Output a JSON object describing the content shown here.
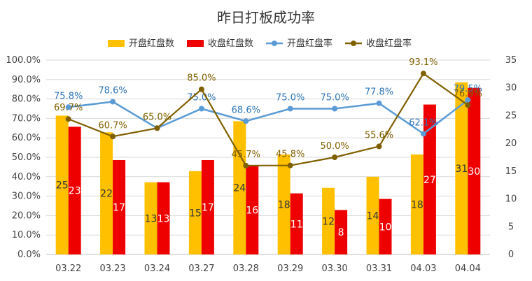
{
  "chart_data": {
    "type": "bar",
    "title": "昨日打板成功率",
    "categories": [
      "03.22",
      "03.23",
      "03.24",
      "03.27",
      "03.28",
      "03.29",
      "03.30",
      "03.31",
      "04.03",
      "04.04"
    ],
    "series": [
      {
        "name": "开盘红盘数",
        "kind": "bar",
        "axis": "right",
        "color": "#FFC000",
        "values": [
          25,
          22,
          13,
          15,
          24,
          18,
          12,
          14,
          18,
          31
        ]
      },
      {
        "name": "收盘红盘数",
        "kind": "bar",
        "axis": "right",
        "color": "#EE0000",
        "values": [
          23,
          17,
          13,
          17,
          16,
          11,
          8,
          10,
          27,
          30
        ]
      },
      {
        "name": "开盘红盘率",
        "kind": "line",
        "axis": "left",
        "color": "#5B9BD5",
        "label_color": "#2E75B6",
        "values": [
          75.8,
          78.6,
          65.0,
          75.0,
          68.6,
          75.0,
          75.0,
          77.8,
          62.1,
          79.5
        ]
      },
      {
        "name": "收盘红盘率",
        "kind": "line",
        "axis": "left",
        "color": "#7F6000",
        "label_color": "#7F6000",
        "values": [
          69.7,
          60.7,
          65.0,
          85.0,
          45.7,
          45.8,
          50.0,
          55.6,
          93.1,
          76.9
        ]
      }
    ],
    "y_left": {
      "min": 0,
      "max": 100,
      "step": 10,
      "tick_labels": [
        "0.0%",
        "10.0%",
        "20.0%",
        "30.0%",
        "40.0%",
        "50.0%",
        "60.0%",
        "70.0%",
        "80.0%",
        "90.0%",
        "100.0%"
      ]
    },
    "y_right": {
      "min": 0,
      "max": 35,
      "step": 5,
      "tick_labels": [
        "0",
        "5",
        "10",
        "15",
        "20",
        "25",
        "30",
        "35"
      ]
    },
    "line_point_labels": {
      "开盘红盘率": [
        "75.8%",
        "78.6%",
        "",
        "75.0%",
        "68.6%",
        "75.0%",
        "75.0%",
        "77.8%",
        "62.1%",
        "79.5%"
      ],
      "收盘红盘率": [
        "69.7%",
        "60.7%",
        "65.0%",
        "85.0%",
        "45.7%",
        "45.8%",
        "50.0%",
        "55.6%",
        "93.1%",
        "76.9%"
      ]
    },
    "grid": true,
    "legend_position": "top"
  }
}
